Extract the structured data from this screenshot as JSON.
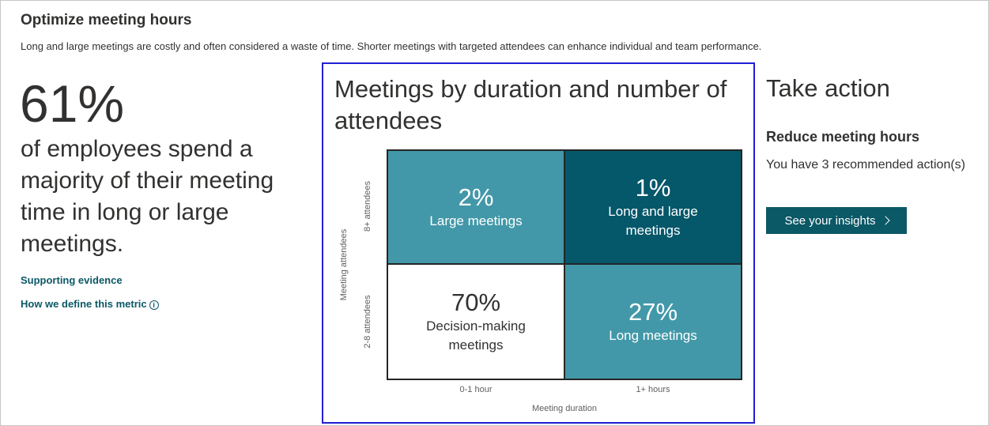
{
  "header": {
    "title": "Optimize meeting hours",
    "description": "Long and large meetings are costly and often considered a waste of time. Shorter meetings with targeted attendees can enhance individual and team performance."
  },
  "metric": {
    "value": "61%",
    "description": "of employees spend a majority of their meeting time in long or large meetings.",
    "links": {
      "evidence": "Supporting evidence",
      "define": "How we define this metric"
    }
  },
  "chart_data": {
    "type": "heatmap",
    "title": "Meetings by duration and number of attendees",
    "xlabel": "Meeting duration",
    "ylabel": "Meeting attendees",
    "x_categories": [
      "0-1 hour",
      "1+ hours"
    ],
    "y_categories": [
      "8+ attendees",
      "2-8 attendees"
    ],
    "cells": [
      {
        "x": "0-1 hour",
        "y": "8+ attendees",
        "value": "2%",
        "label": "Large meetings",
        "color": "#4298a8"
      },
      {
        "x": "1+ hours",
        "y": "8+ attendees",
        "value": "1%",
        "label": "Long and large meetings",
        "color": "#05576a"
      },
      {
        "x": "0-1 hour",
        "y": "2-8 attendees",
        "value": "70%",
        "label": "Decision-making meetings",
        "color": "#ffffff"
      },
      {
        "x": "1+ hours",
        "y": "2-8 attendees",
        "value": "27%",
        "label": "Long meetings",
        "color": "#4298a8"
      }
    ]
  },
  "action": {
    "title": "Take action",
    "subtitle": "Reduce meeting hours",
    "text": "You have 3 recommended action(s)",
    "button_label": "See your insights"
  },
  "colors": {
    "accent": "#0b5866",
    "highlight_border": "#1f1fd4"
  },
  "icons": {
    "info": "info-icon",
    "chevron": "chevron-right-icon"
  }
}
